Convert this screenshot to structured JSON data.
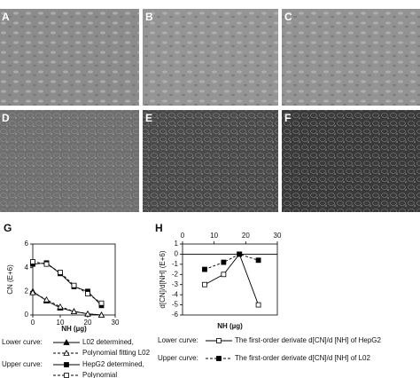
{
  "panel_labels": [
    "A",
    "B",
    "C",
    "D",
    "E",
    "F"
  ],
  "chart_data": [
    {
      "type": "line",
      "label": "G",
      "ylabel": "CN (E+6)",
      "xlabel": "NH (µg)",
      "x": [
        0,
        5,
        10,
        15,
        20,
        25
      ],
      "series": [
        {
          "name": "L02 determined,",
          "color": "#000000",
          "values": [
            2.0,
            1.2,
            0.6,
            0.3,
            0.1,
            0.0
          ]
        },
        {
          "name": "Polynomial fitting L02",
          "color": "#000000",
          "values": [
            1.9,
            1.3,
            0.7,
            0.3,
            0.1,
            0.0
          ]
        },
        {
          "name": "HepG2 determined,",
          "color": "#000000",
          "values": [
            4.3,
            4.4,
            3.5,
            2.4,
            2.0,
            0.8
          ]
        },
        {
          "name": "Polynomial",
          "color": "#000000",
          "values": [
            4.5,
            4.3,
            3.6,
            2.5,
            1.8,
            1.0
          ]
        }
      ],
      "legend_headings": [
        "Lower curve:",
        "Upper curve:"
      ],
      "xlim": [
        0,
        30
      ],
      "xticks": [
        0,
        10,
        20,
        30
      ],
      "ylim": [
        0,
        6
      ],
      "yticks": [
        0,
        2,
        4,
        6
      ]
    },
    {
      "type": "line",
      "label": "H",
      "ylabel": "d[CN]/d[NH] (E+6)",
      "xlabel": "NH (µg)",
      "x": [
        7,
        13,
        18,
        24
      ],
      "series": [
        {
          "name": "The first-order derivate d[CN]/d [NH] of HepG2",
          "color": "#000000",
          "values": [
            -3,
            -2,
            0,
            -5
          ]
        },
        {
          "name": "The first-order derivate d[CN]/d [NH] of L02",
          "color": "#000000",
          "values": [
            -1.5,
            -0.8,
            0,
            -0.6
          ]
        }
      ],
      "legend_headings": [
        "Lower curve:",
        "Upper curve:"
      ],
      "xlim": [
        0,
        30
      ],
      "xticks": [
        0,
        10,
        20,
        30
      ],
      "ylim": [
        -6,
        1
      ],
      "yticks": [
        1,
        0,
        -1,
        -2,
        -3,
        -4,
        -5,
        -6
      ]
    }
  ]
}
